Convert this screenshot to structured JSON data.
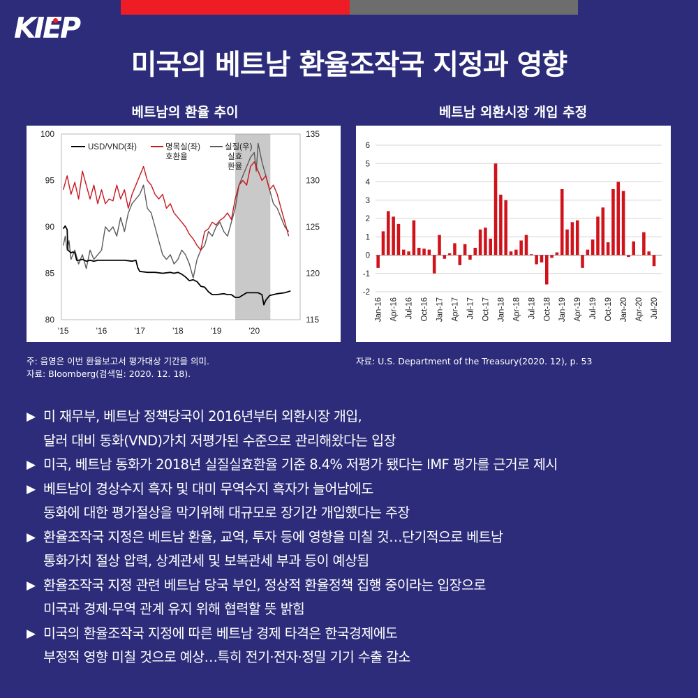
{
  "brand": {
    "logo_text": "KIEP"
  },
  "title": "미국의 베트남 환율조작국 지정과 영향",
  "left_panel": {
    "title": "베트남의 환율 추이",
    "note_lines": [
      "주: 음영은 이번 환율보고서 평가대상 기간을 의미.",
      "자료: Bloomberg(검색일: 2020. 12. 18)."
    ]
  },
  "right_panel": {
    "title": "베트남 외환시장 개입 추정",
    "note": "자료: U.S. Department of the Treasury(2020. 12), p. 53"
  },
  "bullets": [
    {
      "lines": [
        "미 재무부, 베트남 정책당국이 2016년부터 외환시장 개입,",
        "달러 대비 동화(VND)가치 저평가된 수준으로 관리해왔다는 입장"
      ]
    },
    {
      "lines": [
        "미국, 베트남 동화가 2018년 실질실효환율 기준 8.4% 저평가 됐다는 IMF 평가를 근거로 제시"
      ]
    },
    {
      "lines": [
        "베트남이 경상수지 흑자 및 대미 무역수지 흑자가 늘어남에도",
        "동화에 대한 평가절상을 막기위해 대규모로 장기간 개입했다는 주장"
      ]
    },
    {
      "lines": [
        "환율조작국 지정은 베트남 환율, 교역, 투자 등에 영향을 미칠 것…단기적으로 베트남",
        "통화가치 절상 압력, 상계관세 및 보복관세 부과 등이 예상됨"
      ]
    },
    {
      "lines": [
        "환율조작국 지정 관련 베트남 당국 부인, 정상적 환율정책 집행 중이라는 입장으로",
        "미국과 경제·무역 관계 유지 위해 협력할 뜻 밝힘"
      ]
    },
    {
      "lines": [
        "미국의 환율조작국 지정에 따른 베트남 경제 타격은 한국경제에도",
        "부정적 영향 미칠 것으로 예상…특히 전기·전자·정밀 기기 수출 감소"
      ]
    }
  ],
  "bullet_marker": "▶",
  "colors": {
    "background": "#2d2c7a",
    "accent_red": "#ee1c25",
    "bar_red": "#d0131b",
    "gray": "#6d6d6d"
  },
  "chart_data": [
    {
      "type": "line",
      "left_axis": {
        "ylim": [
          80,
          100
        ],
        "ticks": [
          "80",
          "85",
          "90",
          "95",
          "100"
        ]
      },
      "right_axis": {
        "ylim": [
          115,
          135
        ],
        "ticks": [
          "115",
          "120",
          "125",
          "130",
          "135"
        ]
      },
      "x_ticks": [
        "'15",
        "'16",
        "'17",
        "'18",
        "'19",
        "'20"
      ],
      "shaded_period": [
        2019.5,
        2020.42
      ],
      "legend": {
        "usd_vnd": "USD/VND(좌)",
        "nominal": [
          "명목실(좌)",
          "호환율"
        ],
        "real": [
          "실질(우)",
          "실효",
          "환율"
        ]
      },
      "series": [
        {
          "key": "usd_vnd",
          "color": "#000000",
          "axis": "left",
          "x": [
            2015.0,
            2015.05,
            2015.1,
            2015.12,
            2015.15,
            2015.2,
            2015.25,
            2015.3,
            2015.35,
            2015.4,
            2015.5,
            2015.6,
            2015.7,
            2015.8,
            2015.9,
            2016.0,
            2016.2,
            2016.4,
            2016.6,
            2016.8,
            2016.9,
            2016.95,
            2017.0,
            2017.2,
            2017.4,
            2017.6,
            2017.8,
            2017.9,
            2018.0,
            2018.1,
            2018.2,
            2018.3,
            2018.4,
            2018.5,
            2018.6,
            2018.7,
            2018.8,
            2018.9,
            2019.0,
            2019.2,
            2019.3,
            2019.4,
            2019.5,
            2019.6,
            2019.8,
            2020.0,
            2020.1,
            2020.15,
            2020.2,
            2020.25,
            2020.3,
            2020.4,
            2020.6,
            2020.8,
            2020.95
          ],
          "y": [
            89.8,
            90.1,
            89.7,
            87.5,
            87.4,
            87.2,
            87.3,
            87.2,
            86.4,
            86.4,
            86.5,
            86.3,
            86.4,
            86.3,
            86.4,
            86.4,
            86.4,
            86.4,
            86.4,
            86.3,
            86.4,
            85.6,
            85.2,
            85.1,
            85.1,
            85.0,
            85.1,
            85.0,
            85.1,
            84.9,
            84.6,
            84.2,
            84.3,
            84.1,
            83.6,
            83.5,
            83.0,
            82.7,
            82.7,
            82.8,
            82.7,
            82.7,
            82.4,
            82.4,
            82.9,
            82.9,
            82.9,
            82.8,
            82.7,
            81.6,
            82.1,
            82.6,
            82.8,
            82.9,
            83.1
          ]
        },
        {
          "key": "nominal",
          "color": "#c8161d",
          "axis": "left",
          "x": [
            2015.0,
            2015.1,
            2015.2,
            2015.3,
            2015.4,
            2015.5,
            2015.6,
            2015.7,
            2015.8,
            2015.9,
            2016.0,
            2016.1,
            2016.2,
            2016.3,
            2016.4,
            2016.5,
            2016.6,
            2016.7,
            2016.8,
            2016.9,
            2017.0,
            2017.1,
            2017.2,
            2017.3,
            2017.4,
            2017.5,
            2017.6,
            2017.7,
            2017.8,
            2017.9,
            2018.0,
            2018.1,
            2018.2,
            2018.3,
            2018.4,
            2018.5,
            2018.6,
            2018.7,
            2018.8,
            2018.9,
            2019.0,
            2019.1,
            2019.2,
            2019.3,
            2019.4,
            2019.5,
            2019.6,
            2019.7,
            2019.8,
            2019.9,
            2020.0,
            2020.1,
            2020.2,
            2020.3,
            2020.4,
            2020.5,
            2020.6,
            2020.7,
            2020.8,
            2020.9
          ],
          "y": [
            94.0,
            95.5,
            93.5,
            94.8,
            93.0,
            96.0,
            94.5,
            93.0,
            94.5,
            92.5,
            94.0,
            92.5,
            93.0,
            92.8,
            94.5,
            93.0,
            94.0,
            92.0,
            93.5,
            94.5,
            95.5,
            96.5,
            95.0,
            94.5,
            93.5,
            93.0,
            93.5,
            92.0,
            92.5,
            91.5,
            91.0,
            90.5,
            90.0,
            89.2,
            88.7,
            88.0,
            87.5,
            89.5,
            89.8,
            90.5,
            90.2,
            90.7,
            91.0,
            91.5,
            90.8,
            93.0,
            94.5,
            95.0,
            94.5,
            96.5,
            97.0,
            96.0,
            95.0,
            95.5,
            94.0,
            94.5,
            93.5,
            92.0,
            90.5,
            89.0
          ]
        },
        {
          "key": "real",
          "color": "#5a5a5a",
          "axis": "right",
          "x": [
            2015.0,
            2015.05,
            2015.1,
            2015.15,
            2015.2,
            2015.3,
            2015.4,
            2015.5,
            2015.6,
            2015.7,
            2015.8,
            2015.9,
            2016.0,
            2016.1,
            2016.2,
            2016.3,
            2016.4,
            2016.5,
            2016.6,
            2016.7,
            2016.8,
            2016.9,
            2017.0,
            2017.1,
            2017.2,
            2017.3,
            2017.4,
            2017.5,
            2017.6,
            2017.7,
            2017.8,
            2017.9,
            2018.0,
            2018.1,
            2018.2,
            2018.3,
            2018.4,
            2018.5,
            2018.6,
            2018.7,
            2018.8,
            2018.9,
            2019.0,
            2019.1,
            2019.2,
            2019.3,
            2019.4,
            2019.5,
            2019.6,
            2019.7,
            2019.8,
            2019.9,
            2020.0,
            2020.05,
            2020.1,
            2020.2,
            2020.3,
            2020.4,
            2020.5,
            2020.6,
            2020.7,
            2020.8,
            2020.9
          ],
          "y": [
            123.0,
            124.0,
            122.5,
            123.5,
            121.5,
            122.5,
            121.0,
            122.0,
            120.5,
            122.5,
            121.5,
            122.0,
            122.5,
            125.0,
            124.5,
            125.0,
            124.0,
            126.0,
            124.5,
            126.5,
            127.5,
            128.0,
            128.5,
            129.5,
            127.0,
            126.5,
            125.0,
            123.5,
            122.0,
            121.5,
            122.0,
            121.0,
            121.5,
            122.5,
            122.0,
            121.0,
            119.5,
            121.5,
            122.5,
            123.0,
            124.5,
            124.0,
            125.0,
            125.5,
            124.5,
            124.0,
            125.5,
            127.0,
            129.5,
            130.5,
            131.5,
            132.5,
            133.0,
            131.0,
            134.0,
            132.0,
            130.5,
            129.0,
            127.5,
            127.0,
            126.0,
            125.0,
            124.5
          ]
        }
      ]
    },
    {
      "type": "bar",
      "ylim": [
        -2,
        6
      ],
      "y_ticks": [
        "-2",
        "-1",
        "0",
        "1",
        "2",
        "3",
        "4",
        "5",
        "6"
      ],
      "x_tick_labels": [
        "Jan-16",
        "Apr-16",
        "Jul-16",
        "Oct-16",
        "Jan-17",
        "Apr-17",
        "Jul-17",
        "Oct-17",
        "Jan-18",
        "Apr-18",
        "Jul-18",
        "Oct-18",
        "Jan-19",
        "Apr-19",
        "Jul-19",
        "Oct-19",
        "Jan-20",
        "Apr-20",
        "Jul-20"
      ],
      "categories": [
        "Jan-16",
        "Feb-16",
        "Mar-16",
        "Apr-16",
        "May-16",
        "Jun-16",
        "Jul-16",
        "Aug-16",
        "Sep-16",
        "Oct-16",
        "Nov-16",
        "Dec-16",
        "Jan-17",
        "Feb-17",
        "Mar-17",
        "Apr-17",
        "May-17",
        "Jun-17",
        "Jul-17",
        "Aug-17",
        "Sep-17",
        "Oct-17",
        "Nov-17",
        "Dec-17",
        "Jan-18",
        "Feb-18",
        "Mar-18",
        "Apr-18",
        "May-18",
        "Jun-18",
        "Jul-18",
        "Aug-18",
        "Sep-18",
        "Oct-18",
        "Nov-18",
        "Dec-18",
        "Jan-19",
        "Feb-19",
        "Mar-19",
        "Apr-19",
        "May-19",
        "Jun-19",
        "Jul-19",
        "Aug-19",
        "Sep-19",
        "Oct-19",
        "Nov-19",
        "Dec-19",
        "Jan-20",
        "Feb-20",
        "Mar-20",
        "Apr-20",
        "May-20",
        "Jun-20",
        "Jul-20",
        "Aug-20"
      ],
      "values": [
        -0.7,
        1.3,
        2.4,
        2.1,
        1.7,
        0.3,
        0.2,
        1.9,
        0.4,
        0.35,
        0.3,
        -1.0,
        1.1,
        -0.2,
        0.1,
        0.65,
        -0.55,
        0.6,
        -0.25,
        0.4,
        1.4,
        1.5,
        0.9,
        5.0,
        3.3,
        3.0,
        0.2,
        0.3,
        0.8,
        1.1,
        0.05,
        -0.5,
        -0.4,
        -1.6,
        -0.15,
        0.15,
        3.6,
        1.4,
        1.8,
        1.9,
        -0.7,
        0.3,
        0.85,
        2.1,
        2.6,
        0.7,
        3.6,
        4.0,
        3.5,
        -0.1,
        0.75,
        0.0,
        1.25,
        0.2,
        -0.6,
        0.0
      ]
    }
  ]
}
